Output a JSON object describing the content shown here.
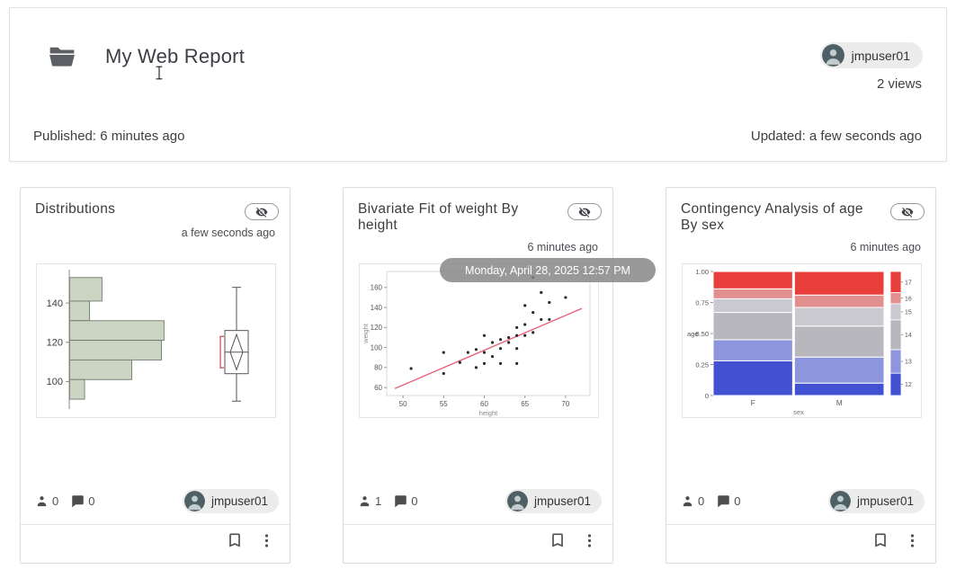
{
  "header": {
    "title": "My Web Report",
    "user_chip": "jmpuser01",
    "views": "2 views",
    "published": "Published: 6 minutes ago",
    "updated": "Updated: a few seconds ago"
  },
  "cards": [
    {
      "title": "Distributions",
      "timestamp": "a few seconds ago",
      "views_count": "0",
      "comments_count": "0",
      "user_chip": "jmpuser01"
    },
    {
      "title": "Bivariate Fit of weight By height",
      "timestamp": "6 minutes ago",
      "views_count": "1",
      "comments_count": "0",
      "user_chip": "jmpuser01",
      "tooltip": "Monday, April 28, 2025 12:57 PM"
    },
    {
      "title": "Contingency Analysis of age By sex",
      "timestamp": "6 minutes ago",
      "views_count": "0",
      "comments_count": "0",
      "user_chip": "jmpuser01"
    }
  ],
  "chart_data": [
    {
      "type": "bar",
      "subtype": "histogram-with-boxplot",
      "title": "Distributions",
      "orientation": "horizontal",
      "value_ticks": [
        140,
        120,
        100
      ],
      "value_range": [
        86,
        157
      ],
      "bar_color": "#cbd5c4",
      "bar_edge_color": "#6f7a6f",
      "bars": [
        {
          "from": 141,
          "to": 153,
          "length": 0.26
        },
        {
          "from": 131,
          "to": 141,
          "length": 0.16
        },
        {
          "from": 121,
          "to": 131,
          "length": 0.76
        },
        {
          "from": 111,
          "to": 121,
          "length": 0.74
        },
        {
          "from": 101,
          "to": 111,
          "length": 0.5
        },
        {
          "from": 91,
          "to": 101,
          "length": 0.12
        }
      ],
      "boxplot": {
        "whisker_high": 148,
        "box_high": 126,
        "median": 115,
        "box_low": 104,
        "whisker_low": 90,
        "diamond_high": 124,
        "diamond_low": 106,
        "bracket_high": 123,
        "bracket_low": 107,
        "bracket_color": "#c4454f"
      }
    },
    {
      "type": "scatter",
      "title": "Bivariate Fit of weight By height",
      "xlabel": "height",
      "ylabel": "weight",
      "x_ticks": [
        50,
        55,
        60,
        65,
        70
      ],
      "y_ticks": [
        60,
        80,
        100,
        120,
        140,
        160
      ],
      "xlim": [
        48,
        73
      ],
      "ylim": [
        52,
        176
      ],
      "fit_line": {
        "x1": 49,
        "y1": 59,
        "x2": 72,
        "y2": 139
      },
      "fit_color": "#e8637a",
      "point_color": "#2b2b2b",
      "points": [
        [
          51,
          79
        ],
        [
          55,
          74
        ],
        [
          55,
          95
        ],
        [
          57,
          85
        ],
        [
          58,
          95
        ],
        [
          59,
          80
        ],
        [
          59,
          98
        ],
        [
          60,
          84
        ],
        [
          60,
          95
        ],
        [
          60,
          112
        ],
        [
          61,
          91
        ],
        [
          61,
          105
        ],
        [
          62,
          84
        ],
        [
          62,
          99
        ],
        [
          62,
          108
        ],
        [
          63,
          105
        ],
        [
          63,
          110
        ],
        [
          64,
          84
        ],
        [
          64,
          99
        ],
        [
          64,
          112
        ],
        [
          64,
          120
        ],
        [
          65,
          112
        ],
        [
          65,
          123
        ],
        [
          65,
          142
        ],
        [
          66,
          115
        ],
        [
          66,
          135
        ],
        [
          66,
          170
        ],
        [
          67,
          128
        ],
        [
          67,
          155
        ],
        [
          68,
          128
        ],
        [
          68,
          145
        ],
        [
          70,
          150
        ]
      ]
    },
    {
      "type": "heatmap",
      "subtype": "mosaic",
      "title": "Contingency Analysis of age By sex",
      "xlabel": "sex",
      "ylabel": "age",
      "y_ticks": [
        "1.00",
        "0.75",
        "0.50",
        "0.25",
        "0"
      ],
      "categories": [
        "F",
        "M"
      ],
      "col_widths": [
        0.47,
        0.53
      ],
      "levels": [
        {
          "label": "12",
          "color": "#4250d2"
        },
        {
          "label": "13",
          "color": "#8d96dd"
        },
        {
          "label": "14",
          "color": "#b7b7bd"
        },
        {
          "label": "15",
          "color": "#c9c9cf"
        },
        {
          "label": "16",
          "color": "#e28f90"
        },
        {
          "label": "17",
          "color": "#e93f3c"
        }
      ],
      "proportions": {
        "F": [
          0.28,
          0.17,
          0.22,
          0.11,
          0.08,
          0.14
        ],
        "M": [
          0.1,
          0.21,
          0.25,
          0.15,
          0.1,
          0.19
        ]
      },
      "legend_proportions": [
        0.18,
        0.19,
        0.24,
        0.13,
        0.09,
        0.17
      ]
    }
  ]
}
